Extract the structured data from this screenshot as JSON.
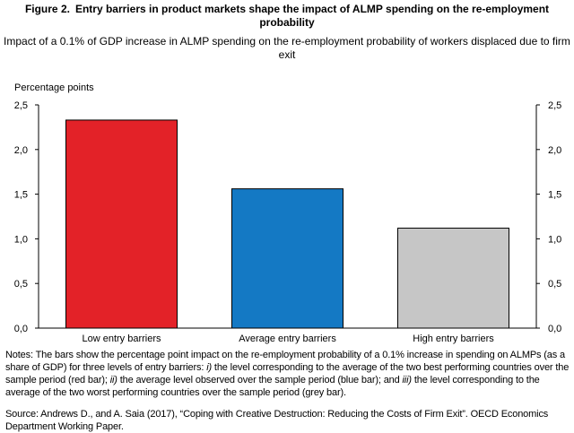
{
  "figure": {
    "label": "Figure 2.",
    "title": "Entry barriers in product markets shape the impact of ALMP spending on the re-employment probability",
    "subtitle": "Impact of a 0.1% of GDP increase in ALMP spending on the re-employment probability of workers displaced due to firm exit"
  },
  "chart_data": {
    "type": "bar",
    "title": "",
    "ylabel": "Percentage points",
    "xlabel": "",
    "categories": [
      "Low entry barriers",
      "Average entry barriers",
      "High entry barriers"
    ],
    "values": [
      2.33,
      1.56,
      1.12
    ],
    "colors": [
      "#e32228",
      "#1479c4",
      "#c6c6c6"
    ],
    "ylim": [
      0,
      2.5
    ],
    "yticks": [
      "0,0",
      "0,5",
      "1,0",
      "1,5",
      "2,0",
      "2,5"
    ],
    "ytick_values": [
      0,
      0.5,
      1.0,
      1.5,
      2.0,
      2.5
    ],
    "grid": false,
    "legend": "none",
    "right_axis": true
  },
  "notes": {
    "parts": [
      {
        "text": "Notes: The bars show the percentage point impact on the re-employment probability of a 0.1% increase in spending on ALMPs (as a share of GDP) for three levels of entry barriers: ",
        "italic": false
      },
      {
        "text": "i)",
        "italic": true
      },
      {
        "text": " the level corresponding to the average of the two best performing countries over the sample period (red bar); ",
        "italic": false
      },
      {
        "text": "ii)",
        "italic": true
      },
      {
        "text": " the average level observed over the sample period (blue bar); and ",
        "italic": false
      },
      {
        "text": "iii)",
        "italic": true
      },
      {
        "text": " the level corresponding to the average of the two worst performing countries over the sample period (grey bar).",
        "italic": false
      }
    ]
  },
  "source": {
    "text": "Source: Andrews D., and A. Saia (2017), “Coping with Creative Destruction: Reducing the Costs of Firm Exit”. OECD Economics Department Working Paper."
  }
}
